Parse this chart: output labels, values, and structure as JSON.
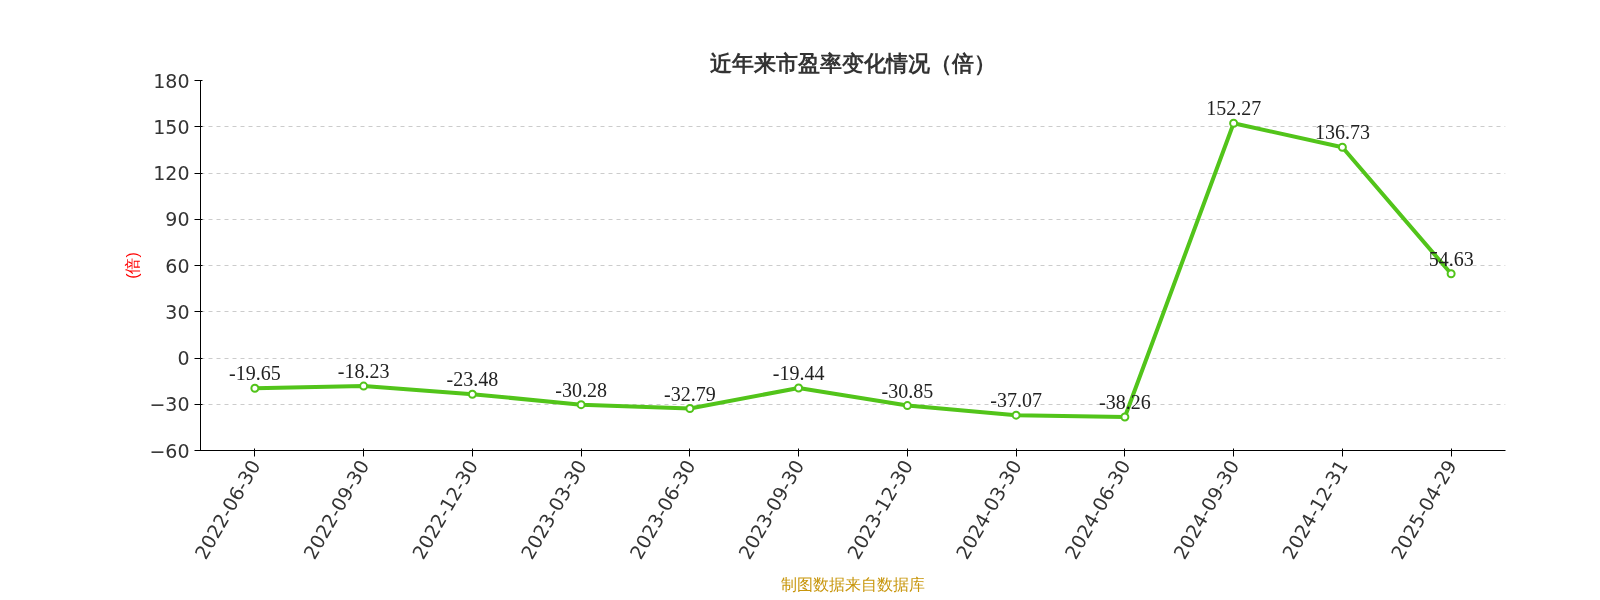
{
  "chart_data": {
    "type": "line",
    "title": "近年来市盈率变化情况（倍）",
    "ylabel": "(倍)",
    "categories": [
      "2022-06-30",
      "2022-09-30",
      "2022-12-30",
      "2023-03-30",
      "2023-06-30",
      "2023-09-30",
      "2023-12-30",
      "2024-03-30",
      "2024-06-30",
      "2024-09-30",
      "2024-12-31",
      "2025-04-29"
    ],
    "series": [
      {
        "color": "#52c41a",
        "values": [
          -19.65,
          -18.23,
          -23.48,
          -30.28,
          -32.79,
          -19.44,
          -30.85,
          -37.07,
          -38.26,
          152.27,
          136.73,
          54.63
        ]
      }
    ],
    "ylim": [
      -60,
      180
    ],
    "yticks": [
      -60,
      -30,
      0,
      30,
      60,
      90,
      120,
      150,
      180
    ],
    "grid": "y",
    "marker": "circle",
    "line_style": "solid",
    "data_labels": true,
    "annotations": [
      "制图数据来自数据库"
    ]
  }
}
